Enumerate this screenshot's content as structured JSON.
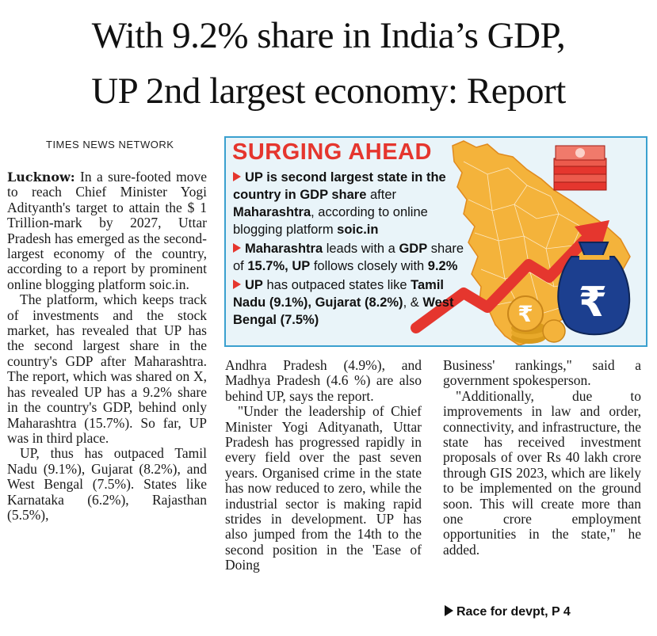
{
  "headline": {
    "line1": "With 9.2% share in India’s GDP,",
    "line2": "UP 2nd largest economy: Report"
  },
  "byline": "TIMES NEWS NETWORK",
  "infographic": {
    "title": "SURGING AHEAD",
    "bullets": [
      {
        "parts": [
          [
            "UP is second largest state in the country in GDP share",
            true
          ],
          [
            " after ",
            false
          ],
          [
            "Maharashtra",
            true
          ],
          [
            ", according to online blogging platform ",
            false
          ],
          [
            "soic.in",
            true
          ]
        ]
      },
      {
        "parts": [
          [
            "Maharashtra",
            true
          ],
          [
            " leads with a ",
            false
          ],
          [
            "GDP",
            true
          ],
          [
            " share of ",
            false
          ],
          [
            "15.7%, UP",
            true
          ],
          [
            " follows closely with ",
            false
          ],
          [
            "9.2%",
            true
          ]
        ]
      },
      {
        "parts": [
          [
            "UP",
            true
          ],
          [
            " has outpaced states like ",
            false
          ],
          [
            "Tamil Nadu (9.1%), Gujarat (8.2%)",
            true
          ],
          [
            ", & ",
            false
          ],
          [
            "West Bengal (7.5%)",
            true
          ]
        ]
      }
    ],
    "rupee_symbol": "₹",
    "icons": [
      "india-map-up-highlight",
      "stacked-rupee-notes",
      "rising-arrow",
      "rupee-money-bag",
      "rupee-coins"
    ],
    "colors": {
      "accent": "#e5362e",
      "map": "#f4b33b",
      "border": "#3aa0cf",
      "bag": "#1c3f8f"
    }
  },
  "article": {
    "dateline": "Lucknow:",
    "col1": [
      "In a sure-footed move to reach Chief Minister Yogi Adityanth's target to attain the $ 1 Trillion-mark by 2027, Uttar Pradesh has emerged as the second-largest economy of the country, according to a report by prominent online blogging platform soic.in.",
      "The platform, which keeps track of investments and the stock market, has revealed that UP has the second largest share in the country's GDP after Maharashtra. The report, which was shared on X, has revealed UP has a 9.2% share in the country's GDP, behind only Maharashtra (15.7%). So far, UP was in third place.",
      "UP, thus has outpaced Tamil Nadu (9.1%), Gujarat (8.2%), and West Bengal (7.5%). States like Karnataka (6.2%), Rajasthan (5.5%),"
    ],
    "col2": [
      "Andhra Pradesh (4.9%), and Madhya Pradesh (4.6 %) are also behind UP, says the report.",
      "\"Under the leadership of Chief Minister Yogi Adityanath, Uttar Pradesh has progressed rapidly in every field over the past seven years. Organised crime in the state has now reduced to zero, while the industrial sector is making rapid strides in development. UP has also jumped from the 14th to the second position in the 'Ease of Doing"
    ],
    "col3": [
      "Business' rankings,\" said a government spokesperson.",
      "\"Additionally, due to improvements in law and order, connectivity, and infrastructure, the state has received investment proposals of over Rs 40 lakh crore through GIS 2023, which are likely to be implemented on the ground soon. This will create more than one crore employment opportunities in the state,\" he added."
    ],
    "continuation": "Race for devpt, P 4"
  }
}
